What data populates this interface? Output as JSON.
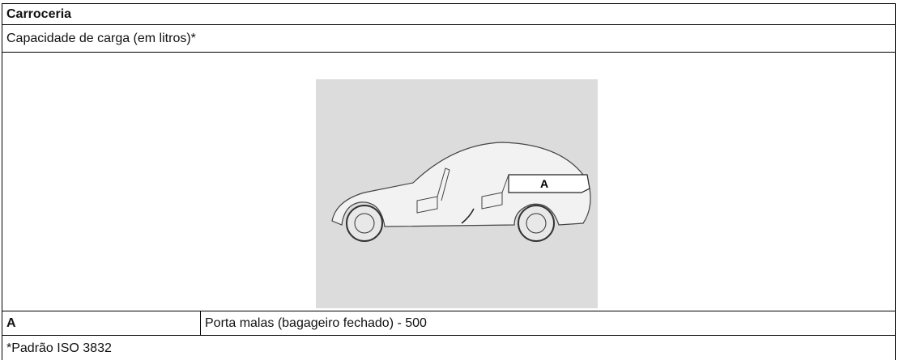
{
  "header": {
    "title": "Carroceria"
  },
  "table": {
    "caption": "Capacidade de carga (em litros)*",
    "figure": {
      "label": "A"
    },
    "rows": [
      [
        "A",
        "Porta malas (bagageiro fechado) - 500"
      ]
    ],
    "footnote": "*Padrão ISO 3832"
  }
}
